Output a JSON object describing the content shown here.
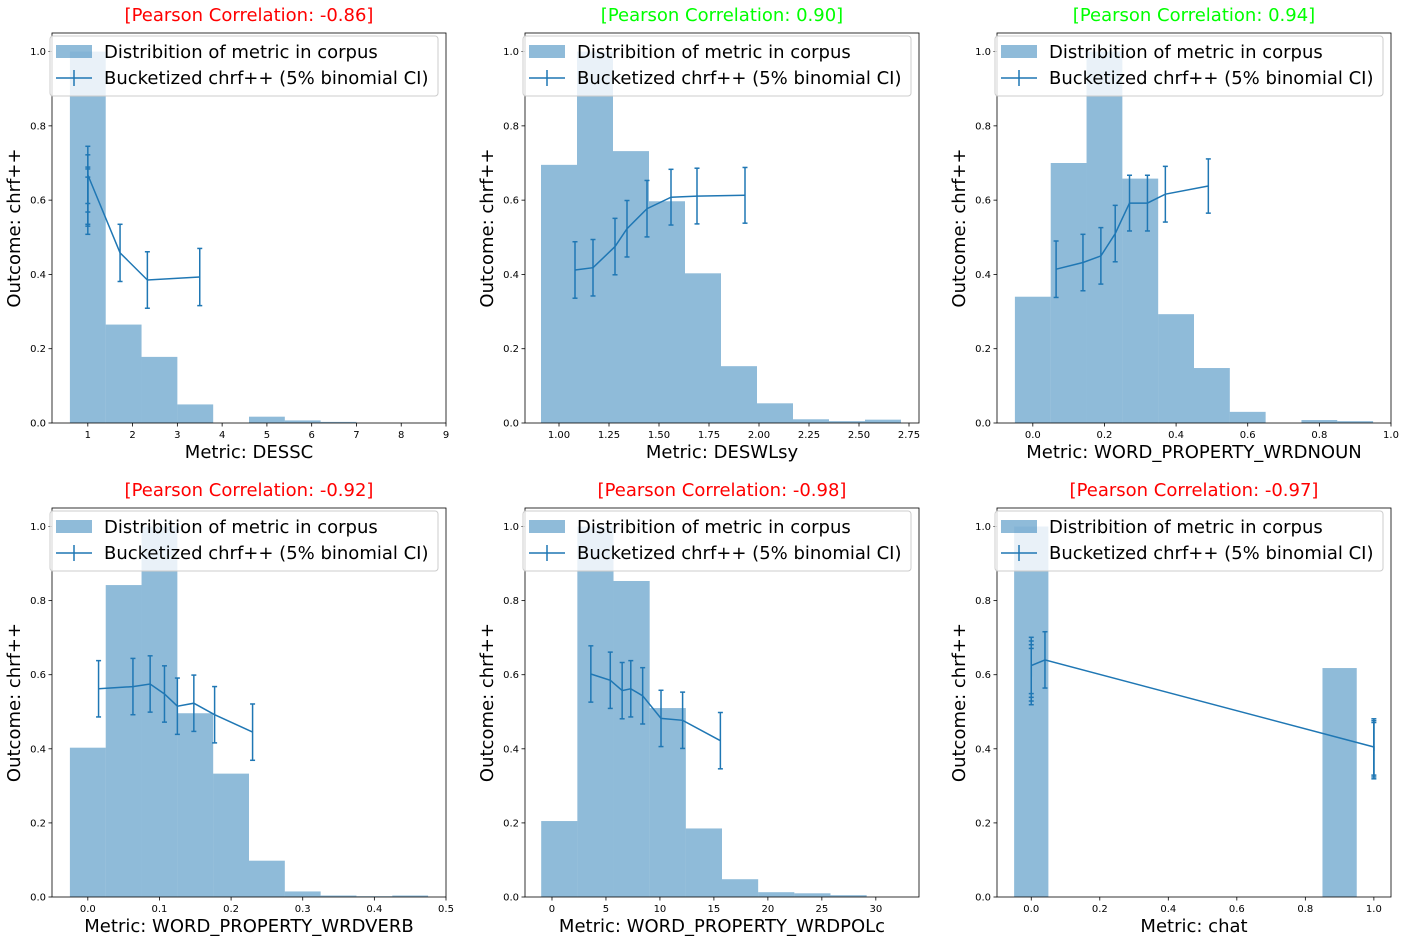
{
  "colors": {
    "hist": "#1f77b4",
    "hist_opacity": 0.5,
    "line": "#1f77b4",
    "negative": "#ff0000",
    "positive": "#00ff00"
  },
  "legend": {
    "hist_label": "Distribition of metric in corpus",
    "line_label": "Bucketized chrf++ (5% binomial CI)",
    "placement": "upper-left"
  },
  "chart_data": [
    {
      "type": "bar",
      "title": "[Pearson Correlation: -0.86]",
      "correlation_sign": "negative",
      "xlabel": "Metric: DESSC",
      "ylabel": "Outcome: chrf++",
      "xlim": [
        0.2,
        9
      ],
      "ylim": [
        0,
        1.05
      ],
      "xticks": [
        1,
        2,
        3,
        4,
        5,
        6,
        7,
        8,
        9
      ],
      "xtick_labels": [
        "1",
        "2",
        "3",
        "4",
        "5",
        "6",
        "7",
        "8",
        "9"
      ],
      "yticks": [
        0,
        0.2,
        0.4,
        0.6,
        0.8,
        1.0
      ],
      "ytick_labels": [
        "0.0",
        "0.2",
        "0.4",
        "0.6",
        "0.8",
        "1.0"
      ],
      "histogram": {
        "edges": [
          0.6,
          1.4,
          2.2,
          3.0,
          3.8,
          4.6,
          5.4,
          6.2,
          7.0,
          7.8,
          8.6
        ],
        "heights": [
          1.0,
          0.265,
          0.178,
          0.05,
          0.0,
          0.017,
          0.007,
          0.003,
          0.0,
          0.0
        ]
      },
      "series": [
        {
          "x": [
            1.0,
            1.0,
            1.0,
            1.0,
            1.0,
            1.72,
            2.33,
            3.5
          ],
          "y": [
            0.612,
            0.585,
            0.607,
            0.645,
            0.668,
            0.458,
            0.385,
            0.393
          ],
          "err": [
            0.077,
            0.077,
            0.077,
            0.077,
            0.077,
            0.077,
            0.076,
            0.077
          ]
        }
      ]
    },
    {
      "type": "bar",
      "title": "[Pearson Correlation: 0.90]",
      "correlation_sign": "positive",
      "xlabel": "Metric: DESWLsy",
      "ylabel": "Outcome: chrf++",
      "xlim": [
        0.83,
        2.8
      ],
      "ylim": [
        0,
        1.05
      ],
      "xticks": [
        1.0,
        1.25,
        1.5,
        1.75,
        2.0,
        2.25,
        2.5,
        2.75
      ],
      "xtick_labels": [
        "1.00",
        "1.25",
        "1.50",
        "1.75",
        "2.00",
        "2.25",
        "2.50",
        "2.75"
      ],
      "yticks": [
        0,
        0.2,
        0.4,
        0.6,
        0.8,
        1.0
      ],
      "ytick_labels": [
        "0.0",
        "0.2",
        "0.4",
        "0.6",
        "0.8",
        "1.0"
      ],
      "histogram": {
        "edges": [
          0.91,
          1.09,
          1.27,
          1.45,
          1.63,
          1.81,
          1.99,
          2.17,
          2.35,
          2.53,
          2.71
        ],
        "heights": [
          0.695,
          1.0,
          0.732,
          0.597,
          0.403,
          0.153,
          0.053,
          0.01,
          0.005,
          0.009
        ]
      },
      "series": [
        {
          "x": [
            1.08,
            1.17,
            1.28,
            1.34,
            1.44,
            1.56,
            1.69,
            1.93
          ],
          "y": [
            0.412,
            0.418,
            0.475,
            0.523,
            0.577,
            0.608,
            0.611,
            0.613
          ],
          "err": [
            0.076,
            0.076,
            0.076,
            0.076,
            0.076,
            0.075,
            0.075,
            0.075
          ]
        }
      ]
    },
    {
      "type": "bar",
      "title": "[Pearson Correlation: 0.94]",
      "correlation_sign": "positive",
      "xlabel": "Metric: WORD_PROPERTY_WRDNOUN",
      "ylabel": "Outcome: chrf++",
      "xlim": [
        -0.1,
        1.0
      ],
      "ylim": [
        0,
        1.05
      ],
      "xticks": [
        0.0,
        0.2,
        0.4,
        0.6,
        0.8,
        1.0
      ],
      "xtick_labels": [
        "0.0",
        "0.2",
        "0.4",
        "0.6",
        "0.8",
        "1.0"
      ],
      "yticks": [
        0,
        0.2,
        0.4,
        0.6,
        0.8,
        1.0
      ],
      "ytick_labels": [
        "0.0",
        "0.2",
        "0.4",
        "0.6",
        "0.8",
        "1.0"
      ],
      "histogram": {
        "edges": [
          -0.05,
          0.05,
          0.15,
          0.25,
          0.35,
          0.45,
          0.55,
          0.65,
          0.75,
          0.85,
          0.95
        ],
        "heights": [
          0.34,
          0.7,
          1.0,
          0.658,
          0.293,
          0.148,
          0.03,
          0.0,
          0.008,
          0.005
        ]
      },
      "series": [
        {
          "x": [
            0.065,
            0.14,
            0.19,
            0.23,
            0.27,
            0.32,
            0.37,
            0.49
          ],
          "y": [
            0.414,
            0.432,
            0.45,
            0.51,
            0.592,
            0.592,
            0.616,
            0.638
          ],
          "err": [
            0.076,
            0.076,
            0.076,
            0.076,
            0.075,
            0.075,
            0.075,
            0.073
          ]
        }
      ]
    },
    {
      "type": "bar",
      "title": "[Pearson Correlation: -0.92]",
      "correlation_sign": "negative",
      "xlabel": "Metric: WORD_PROPERTY_WRDVERB",
      "ylabel": "Outcome: chrf++",
      "xlim": [
        -0.05,
        0.5
      ],
      "ylim": [
        0,
        1.05
      ],
      "xticks": [
        0.0,
        0.1,
        0.2,
        0.3,
        0.4,
        0.5
      ],
      "xtick_labels": [
        "0.0",
        "0.1",
        "0.2",
        "0.3",
        "0.4",
        "0.5"
      ],
      "yticks": [
        0,
        0.2,
        0.4,
        0.6,
        0.8,
        1.0
      ],
      "ytick_labels": [
        "0.0",
        "0.2",
        "0.4",
        "0.6",
        "0.8",
        "1.0"
      ],
      "histogram": {
        "edges": [
          -0.025,
          0.025,
          0.075,
          0.125,
          0.175,
          0.225,
          0.275,
          0.325,
          0.375,
          0.425,
          0.475
        ],
        "heights": [
          0.403,
          0.842,
          1.0,
          0.496,
          0.333,
          0.098,
          0.015,
          0.004,
          0.002,
          0.004
        ]
      },
      "series": [
        {
          "x": [
            0.015,
            0.063,
            0.087,
            0.107,
            0.125,
            0.148,
            0.177,
            0.23
          ],
          "y": [
            0.562,
            0.568,
            0.575,
            0.548,
            0.515,
            0.523,
            0.492,
            0.445
          ],
          "err": [
            0.076,
            0.076,
            0.076,
            0.076,
            0.076,
            0.076,
            0.076,
            0.076
          ]
        }
      ]
    },
    {
      "type": "bar",
      "title": "[Pearson Correlation: -0.98]",
      "correlation_sign": "negative",
      "xlabel": "Metric: WORD_PROPERTY_WRDPOLc",
      "ylabel": "Outcome: chrf++",
      "xlim": [
        -2.5,
        34
      ],
      "ylim": [
        0,
        1.05
      ],
      "xticks": [
        0,
        5,
        10,
        15,
        20,
        25,
        30
      ],
      "xtick_labels": [
        "0",
        "5",
        "10",
        "15",
        "20",
        "25",
        "30"
      ],
      "yticks": [
        0,
        0.2,
        0.4,
        0.6,
        0.8,
        1.0
      ],
      "ytick_labels": [
        "0.0",
        "0.2",
        "0.4",
        "0.6",
        "0.8",
        "1.0"
      ],
      "histogram": {
        "edges": [
          -1,
          2.35,
          5.7,
          9.05,
          12.4,
          15.75,
          19.1,
          22.45,
          25.8,
          29.15,
          32.5
        ],
        "heights": [
          0.205,
          1.0,
          0.853,
          0.51,
          0.185,
          0.048,
          0.013,
          0.01,
          0.005,
          0.0
        ]
      },
      "series": [
        {
          "x": [
            3.6,
            5.4,
            6.5,
            7.3,
            8.4,
            10.1,
            12.1,
            15.6
          ],
          "y": [
            0.602,
            0.585,
            0.557,
            0.562,
            0.543,
            0.482,
            0.477,
            0.422
          ],
          "err": [
            0.076,
            0.076,
            0.076,
            0.076,
            0.076,
            0.076,
            0.076,
            0.076
          ]
        }
      ]
    },
    {
      "type": "bar",
      "title": "[Pearson Correlation: -0.97]",
      "correlation_sign": "negative",
      "xlabel": "Metric: chat",
      "ylabel": "Outcome: chrf++",
      "xlim": [
        -0.1,
        1.05
      ],
      "ylim": [
        0,
        1.05
      ],
      "xticks": [
        0.0,
        0.2,
        0.4,
        0.6,
        0.8,
        1.0
      ],
      "xtick_labels": [
        "0.0",
        "0.2",
        "0.4",
        "0.6",
        "0.8",
        "1.0"
      ],
      "yticks": [
        0,
        0.2,
        0.4,
        0.6,
        0.8,
        1.0
      ],
      "ytick_labels": [
        "0.0",
        "0.2",
        "0.4",
        "0.6",
        "0.8",
        "1.0"
      ],
      "histogram": {
        "edges": [
          -0.05,
          0.05,
          0.15,
          0.25,
          0.35,
          0.45,
          0.55,
          0.65,
          0.75,
          0.85,
          0.95
        ],
        "heights": [
          1.0,
          0.0,
          0.0,
          0.0,
          0.0,
          0.0,
          0.0,
          0.0,
          0.0,
          0.618
        ]
      },
      "series": [
        {
          "x": [
            0.0,
            0.0,
            0.0,
            0.0,
            0.04,
            1.0,
            1.0,
            1.0
          ],
          "y": [
            0.595,
            0.605,
            0.615,
            0.625,
            0.64,
            0.405,
            0.4,
            0.395
          ],
          "err": [
            0.076,
            0.076,
            0.076,
            0.076,
            0.076,
            0.076,
            0.076,
            0.076
          ]
        }
      ]
    }
  ]
}
